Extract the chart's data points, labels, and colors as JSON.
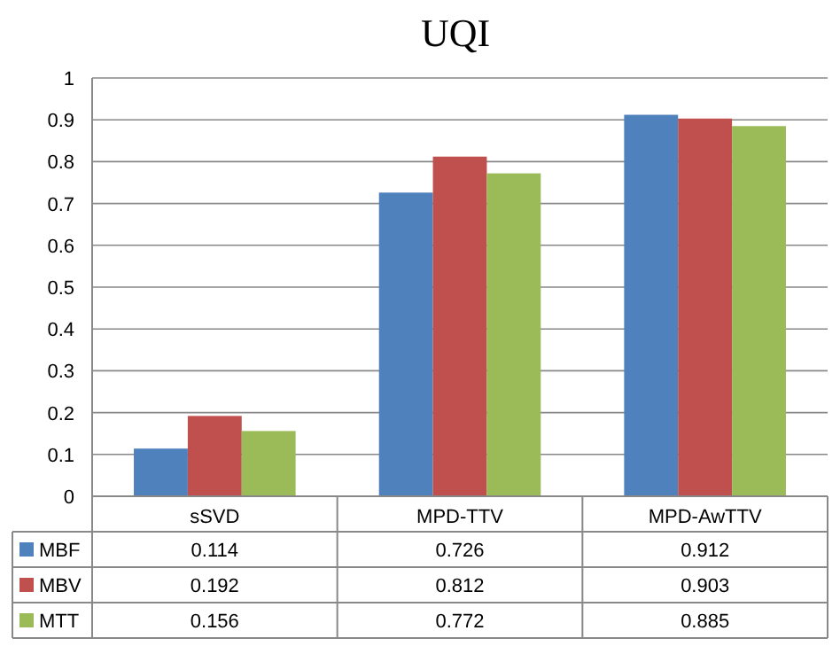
{
  "chart_data": {
    "type": "bar",
    "title": "UQI",
    "categories": [
      "sSVD",
      "MPD-TTV",
      "MPD-AwTTV"
    ],
    "series": [
      {
        "name": "MBF",
        "color": "#4f81bd",
        "values": [
          0.114,
          0.726,
          0.912
        ]
      },
      {
        "name": "MBV",
        "color": "#c0504d",
        "values": [
          0.192,
          0.812,
          0.903
        ]
      },
      {
        "name": "MTT",
        "color": "#9bbb59",
        "values": [
          0.156,
          0.772,
          0.885
        ]
      }
    ],
    "ylim": [
      0,
      1
    ],
    "yticks": [
      0,
      0.1,
      0.2,
      0.3,
      0.4,
      0.5,
      0.6,
      0.7,
      0.8,
      0.9,
      1
    ],
    "grid": "y",
    "legend": "bottom",
    "data_labels": true
  }
}
